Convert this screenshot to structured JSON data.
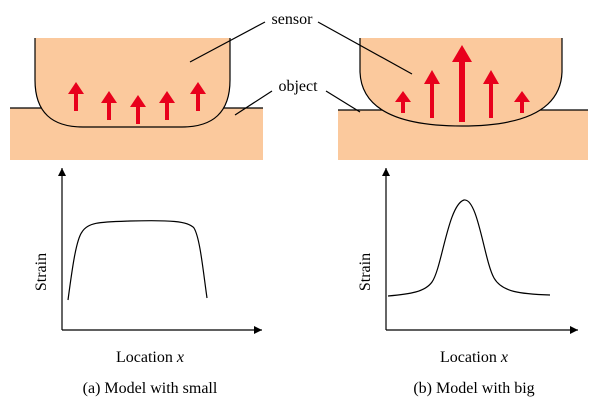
{
  "labels": {
    "sensor": "sensor",
    "object": "object"
  },
  "panels": [
    {
      "y_label": "Strain",
      "x_label": "Location",
      "x_var": "x",
      "caption": "(a) Model with small"
    },
    {
      "y_label": "Strain",
      "x_label": "Location",
      "x_var": "x",
      "caption": "(b) Model with big"
    }
  ]
}
